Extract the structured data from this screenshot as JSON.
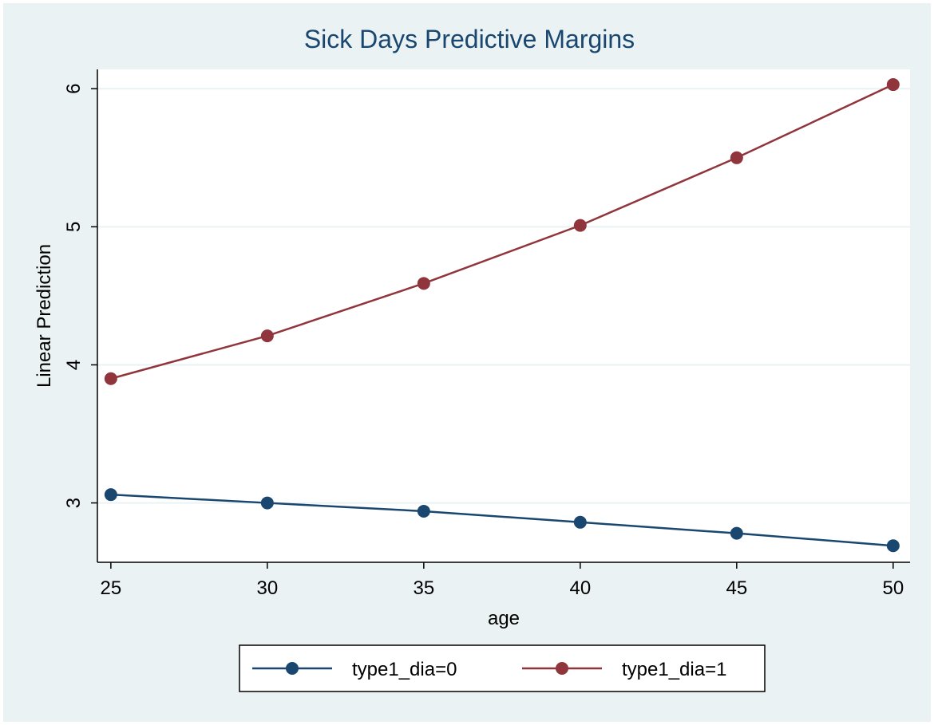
{
  "chart_data": {
    "type": "line",
    "title": "Sick Days Predictive Margins",
    "x_label": "age",
    "y_label": "Linear Prediction",
    "x": [
      25,
      30,
      35,
      40,
      45,
      50
    ],
    "series": [
      {
        "name": "type1_dia=0",
        "color": "#1a476f",
        "values": [
          3.06,
          3.0,
          2.94,
          2.86,
          2.78,
          2.69
        ]
      },
      {
        "name": "type1_dia=1",
        "color": "#90353b",
        "values": [
          3.9,
          4.21,
          4.59,
          5.01,
          5.5,
          6.03
        ]
      }
    ],
    "xlim": [
      24.57,
      50.54
    ],
    "xticks": [
      25,
      30,
      35,
      40,
      45,
      50
    ],
    "ylim": [
      2.57,
      6.14
    ],
    "yticks": [
      3,
      4,
      5,
      6
    ],
    "grid": true,
    "legend": "bottom"
  }
}
